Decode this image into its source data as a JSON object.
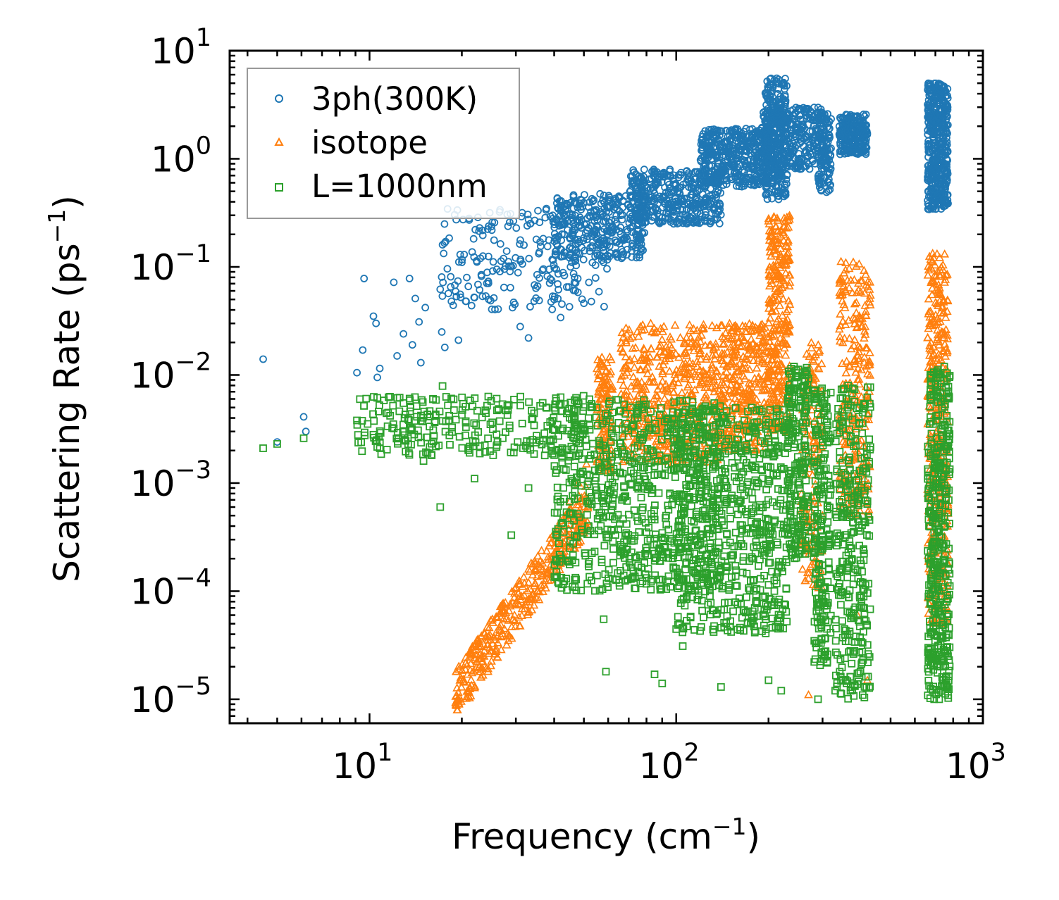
{
  "chart_data": {
    "type": "scatter",
    "title": "",
    "xlabel": "Frequency (cm",
    "xlabel_sup": "−1",
    "xlabel_end": ")",
    "ylabel": "Scattering Rate (ps",
    "ylabel_sup": "−1",
    "ylabel_end": ")",
    "xscale": "log",
    "yscale": "log",
    "xlim": [
      3.5,
      1000
    ],
    "ylim": [
      6e-06,
      10
    ],
    "x_ticks": [
      {
        "base": "10",
        "exp": "1"
      },
      {
        "base": "10",
        "exp": "2"
      },
      {
        "base": "10",
        "exp": "3"
      }
    ],
    "y_ticks": [
      {
        "base": "10",
        "exp": "−5"
      },
      {
        "base": "10",
        "exp": "−4"
      },
      {
        "base": "10",
        "exp": "−3"
      },
      {
        "base": "10",
        "exp": "−2"
      },
      {
        "base": "10",
        "exp": "−1"
      },
      {
        "base": "10",
        "exp": "0"
      },
      {
        "base": "10",
        "exp": "1"
      }
    ],
    "legend_position": "top-left",
    "series": [
      {
        "name": "3ph(300K)",
        "marker": "circle",
        "color": "#1f77b4",
        "points": [
          [
            4.5,
            0.014
          ],
          [
            5.0,
            0.0024
          ],
          [
            6.1,
            0.0041
          ],
          [
            9.1,
            0.0105
          ],
          [
            9.5,
            0.017
          ],
          [
            9.6,
            0.078
          ],
          [
            10.3,
            0.035
          ],
          [
            10.5,
            0.03
          ],
          [
            10.6,
            0.0095
          ],
          [
            10.8,
            0.0115
          ],
          [
            12.0,
            0.072
          ],
          [
            12.3,
            0.015
          ],
          [
            12.9,
            0.024
          ],
          [
            13.5,
            0.078
          ],
          [
            13.8,
            0.019
          ],
          [
            14.1,
            0.051
          ],
          [
            14.5,
            0.031
          ],
          [
            14.7,
            0.013
          ],
          [
            15.2,
            0.042
          ],
          [
            17.0,
            0.062
          ],
          [
            17.2,
            0.025
          ],
          [
            17.6,
            0.018
          ],
          [
            18.5,
            0.048
          ],
          [
            19.5,
            0.021
          ],
          [
            20.0,
            0.11
          ],
          [
            21.0,
            0.066
          ],
          [
            22.0,
            0.052
          ],
          [
            23.0,
            0.12
          ],
          [
            24.5,
            0.05
          ],
          [
            26.0,
            0.095
          ],
          [
            28.0,
            0.14
          ],
          [
            29.5,
            0.047
          ],
          [
            31.0,
            0.028
          ],
          [
            33.0,
            0.022
          ],
          [
            34.5,
            0.068
          ],
          [
            36.0,
            0.17
          ],
          [
            38.0,
            0.082
          ],
          [
            40.0,
            0.05
          ],
          [
            42.0,
            0.034
          ],
          [
            45.0,
            0.13
          ],
          [
            47.0,
            0.071
          ],
          [
            50.0,
            0.046
          ],
          [
            53.0,
            0.24
          ],
          [
            56.0,
            0.059
          ],
          [
            6.2,
            0.003
          ]
        ],
        "clusters": [
          {
            "x": [
              17,
              60
            ],
            "ymin": 0.04,
            "ymax": 0.35,
            "n": 220
          },
          {
            "x": [
              40,
              80
            ],
            "ymin": 0.12,
            "ymax": 0.48,
            "n": 320
          },
          {
            "x": [
              70,
              140
            ],
            "ymin": 0.25,
            "ymax": 0.8,
            "n": 420
          },
          {
            "x": [
              120,
              200
            ],
            "ymin": 0.55,
            "ymax": 1.9,
            "n": 420
          },
          {
            "x": [
              190,
              310
            ],
            "ymin": 0.8,
            "ymax": 3.0,
            "n": 360
          },
          {
            "x": [
              195,
              230
            ],
            "ymin": 0.42,
            "ymax": 5.6,
            "n": 260
          },
          {
            "x": [
              290,
              320
            ],
            "ymin": 0.48,
            "ymax": 2.6,
            "n": 100
          },
          {
            "x": [
              340,
              420
            ],
            "ymin": 1.1,
            "ymax": 2.6,
            "n": 220
          },
          {
            "x": [
              660,
              770
            ],
            "ymin": 0.34,
            "ymax": 5.0,
            "n": 450
          }
        ]
      },
      {
        "name": "isotope",
        "marker": "triangle",
        "color": "#ff7f0e",
        "points": [
          [
            19.5,
            1e-05
          ],
          [
            21.0,
            1.2e-05
          ],
          [
            23.0,
            1.8e-05
          ],
          [
            25.0,
            2.8e-05
          ],
          [
            27.5,
            4.5e-05
          ],
          [
            30.0,
            7.5e-05
          ],
          [
            33.0,
            0.00012
          ],
          [
            36.0,
            0.00019
          ],
          [
            39.0,
            0.00028
          ],
          [
            42.0,
            0.00045
          ],
          [
            45.0,
            0.00068
          ],
          [
            48.0,
            0.001
          ],
          [
            51.0,
            0.0015
          ],
          [
            270.0,
            1.1e-05
          ],
          [
            285.0,
            0.00035
          ],
          [
            390.0,
            6e-05
          ],
          [
            420.0,
            1.5e-05
          ]
        ],
        "clusters": [
          {
            "x": [
              19,
              52
            ],
            "band": true,
            "n": 380
          },
          {
            "x": [
              55,
              62
            ],
            "ymin": 0.0012,
            "ymax": 0.015,
            "n": 120
          },
          {
            "x": [
              66,
              140
            ],
            "ymin": 0.0015,
            "ymax": 0.03,
            "n": 520
          },
          {
            "x": [
              140,
              200
            ],
            "ymin": 0.002,
            "ymax": 0.03,
            "n": 320
          },
          {
            "x": [
              200,
              235
            ],
            "ymin": 0.003,
            "ymax": 0.3,
            "n": 300
          },
          {
            "x": [
              255,
              300
            ],
            "ymin": 0.0001,
            "ymax": 0.02,
            "n": 150
          },
          {
            "x": [
              340,
              430
            ],
            "ymin": 0.0005,
            "ymax": 0.12,
            "n": 260
          },
          {
            "x": [
              660,
              770
            ],
            "ymin": 5e-05,
            "ymax": 0.14,
            "n": 380
          }
        ]
      },
      {
        "name": "L=1000nm",
        "marker": "square",
        "color": "#2ca02c",
        "points": [
          [
            4.5,
            0.0021
          ],
          [
            5.0,
            0.0023
          ],
          [
            6.1,
            0.0026
          ],
          [
            9.1,
            0.0038
          ],
          [
            9.6,
            0.0052
          ],
          [
            10.3,
            0.0028
          ],
          [
            10.8,
            0.0021
          ],
          [
            12.0,
            0.0032
          ],
          [
            13.0,
            0.004
          ],
          [
            15.0,
            0.0016
          ],
          [
            17.0,
            0.0006
          ],
          [
            17.3,
            0.0079
          ],
          [
            22.0,
            0.0011
          ],
          [
            29.0,
            0.00033
          ],
          [
            33.0,
            0.0009
          ],
          [
            45.0,
            0.00025
          ],
          [
            58.0,
            5.5e-05
          ],
          [
            59.0,
            1.8e-05
          ],
          [
            85.0,
            1.7e-05
          ],
          [
            90.0,
            1.4e-05
          ],
          [
            105.0,
            3.1e-05
          ],
          [
            140.0,
            1.3e-05
          ],
          [
            200.0,
            1.5e-05
          ],
          [
            220.0,
            1.2e-05
          ],
          [
            290.0,
            1e-05
          ],
          [
            330.0,
            1.2e-05
          ],
          [
            370.0,
            1.2e-05
          ],
          [
            720.0,
            1e-05
          ]
        ],
        "clusters": [
          {
            "x": [
              9,
              50
            ],
            "ymin": 0.0018,
            "ymax": 0.0065,
            "n": 260
          },
          {
            "x": [
              40,
              140
            ],
            "ymin": 0.0001,
            "ymax": 0.006,
            "n": 750
          },
          {
            "x": [
              100,
              230
            ],
            "ymin": 4e-05,
            "ymax": 0.005,
            "n": 650
          },
          {
            "x": [
              230,
              270
            ],
            "ymin": 0.0002,
            "ymax": 0.012,
            "n": 220
          },
          {
            "x": [
              280,
              320
            ],
            "ymin": 2e-05,
            "ymax": 0.008,
            "n": 220
          },
          {
            "x": [
              330,
              430
            ],
            "ymin": 1e-05,
            "ymax": 0.008,
            "n": 320
          },
          {
            "x": [
              660,
              780
            ],
            "ymin": 1e-05,
            "ymax": 0.012,
            "n": 420
          }
        ]
      }
    ]
  }
}
